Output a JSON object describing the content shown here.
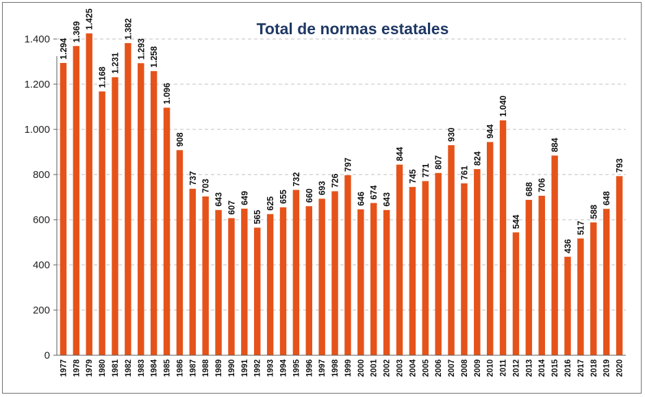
{
  "chart_data": {
    "type": "bar",
    "title": "Total de normas estatales",
    "xlabel": "",
    "ylabel": "",
    "ylim": [
      0,
      1500
    ],
    "yticks": [
      0,
      200,
      400,
      600,
      800,
      1000,
      1200,
      1400
    ],
    "ytick_labels": [
      "0",
      "200",
      "400",
      "600",
      "800",
      "1.000",
      "1.200",
      "1.400"
    ],
    "grid": true,
    "legend": "none",
    "categories": [
      "1977",
      "1978",
      "1979",
      "1980",
      "1981",
      "1982",
      "1983",
      "1984",
      "1985",
      "1986",
      "1987",
      "1988",
      "1989",
      "1990",
      "1991",
      "1992",
      "1993",
      "1994",
      "1995",
      "1996",
      "1997",
      "1998",
      "1999",
      "2000",
      "2001",
      "2002",
      "2003",
      "2004",
      "2005",
      "2006",
      "2007",
      "2008",
      "2009",
      "2010",
      "2011",
      "2012",
      "2013",
      "2014",
      "2015",
      "2016",
      "2017",
      "2018",
      "2019",
      "2020"
    ],
    "values": [
      1294,
      1369,
      1425,
      1168,
      1231,
      1382,
      1293,
      1258,
      1096,
      908,
      737,
      703,
      643,
      607,
      649,
      565,
      625,
      655,
      732,
      660,
      693,
      726,
      797,
      646,
      674,
      643,
      844,
      745,
      771,
      807,
      930,
      761,
      824,
      944,
      1040,
      544,
      688,
      706,
      884,
      436,
      517,
      588,
      648,
      793
    ],
    "value_labels": [
      "1.294",
      "1.369",
      "1.425",
      "1.168",
      "1.231",
      "1.382",
      "1.293",
      "1.258",
      "1.096",
      "908",
      "737",
      "703",
      "643",
      "607",
      "649",
      "565",
      "625",
      "655",
      "732",
      "660",
      "693",
      "726",
      "797",
      "646",
      "674",
      "643",
      "844",
      "745",
      "771",
      "807",
      "930",
      "761",
      "824",
      "944",
      "1.040",
      "544",
      "688",
      "706",
      "884",
      "436",
      "517",
      "588",
      "648",
      "793"
    ],
    "colors": {
      "bar": "#E5531A",
      "title": "#1F3864",
      "grid": "#BFBFBF",
      "axis": "#595959"
    }
  }
}
